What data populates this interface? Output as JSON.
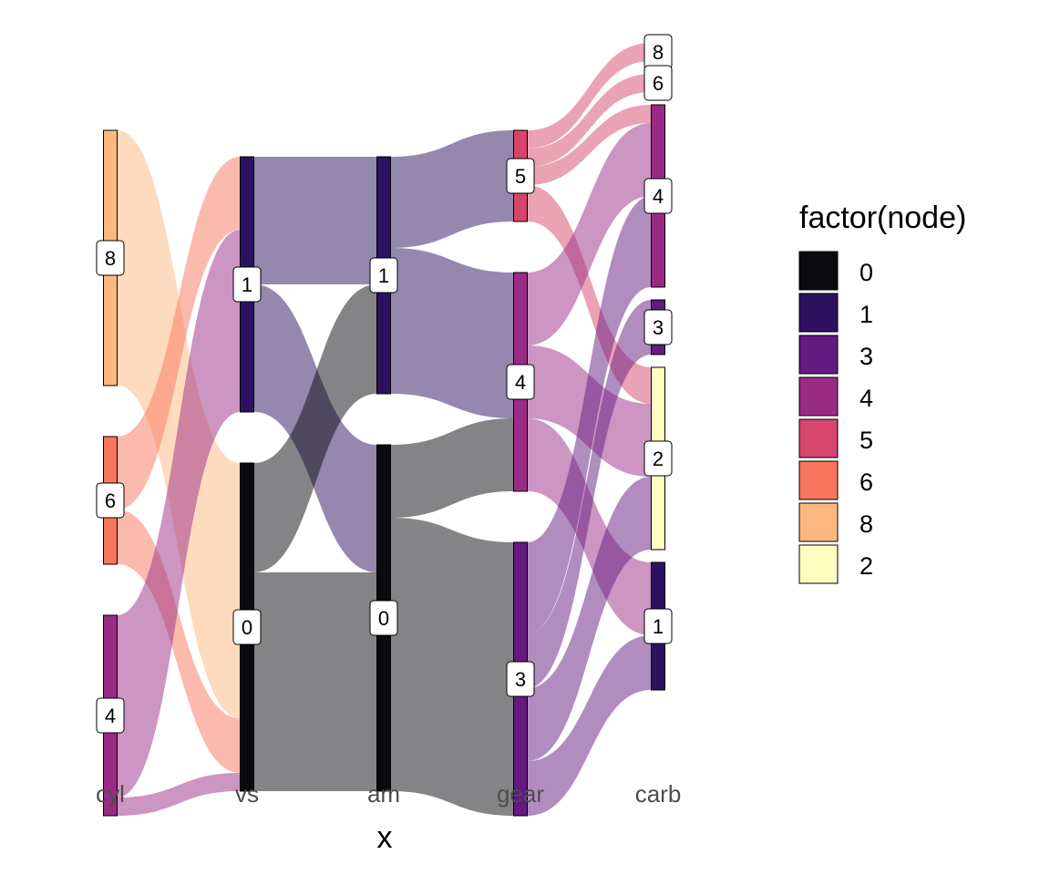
{
  "chart_data": {
    "type": "sankey",
    "title": "",
    "xlabel": "x",
    "ylabel": "",
    "axes": [
      "cyl",
      "vs",
      "am",
      "gear",
      "carb"
    ],
    "nodes": [
      {
        "axis": "cyl",
        "label": "8",
        "count": 14
      },
      {
        "axis": "cyl",
        "label": "6",
        "count": 7
      },
      {
        "axis": "cyl",
        "label": "4",
        "count": 11
      },
      {
        "axis": "vs",
        "label": "1",
        "count": 14
      },
      {
        "axis": "vs",
        "label": "0",
        "count": 18
      },
      {
        "axis": "am",
        "label": "1",
        "count": 13
      },
      {
        "axis": "am",
        "label": "0",
        "count": 19
      },
      {
        "axis": "gear",
        "label": "5",
        "count": 5
      },
      {
        "axis": "gear",
        "label": "4",
        "count": 12
      },
      {
        "axis": "gear",
        "label": "3",
        "count": 15
      },
      {
        "axis": "carb",
        "label": "8",
        "count": 1
      },
      {
        "axis": "carb",
        "label": "6",
        "count": 1
      },
      {
        "axis": "carb",
        "label": "4",
        "count": 10
      },
      {
        "axis": "carb",
        "label": "3",
        "count": 3
      },
      {
        "axis": "carb",
        "label": "2",
        "count": 10
      },
      {
        "axis": "carb",
        "label": "1",
        "count": 7
      }
    ],
    "flows": [
      {
        "from": "cyl:8",
        "to": "vs:0",
        "value": 14
      },
      {
        "from": "cyl:6",
        "to": "vs:1",
        "value": 4
      },
      {
        "from": "cyl:6",
        "to": "vs:0",
        "value": 3
      },
      {
        "from": "cyl:4",
        "to": "vs:1",
        "value": 10
      },
      {
        "from": "cyl:4",
        "to": "vs:0",
        "value": 1
      },
      {
        "from": "vs:1",
        "to": "am:1",
        "value": 7
      },
      {
        "from": "vs:1",
        "to": "am:0",
        "value": 7
      },
      {
        "from": "vs:0",
        "to": "am:1",
        "value": 6
      },
      {
        "from": "vs:0",
        "to": "am:0",
        "value": 12
      },
      {
        "from": "am:1",
        "to": "gear:5",
        "value": 5
      },
      {
        "from": "am:1",
        "to": "gear:4",
        "value": 8
      },
      {
        "from": "am:0",
        "to": "gear:4",
        "value": 4
      },
      {
        "from": "am:0",
        "to": "gear:3",
        "value": 15
      },
      {
        "from": "gear:5",
        "to": "carb:8",
        "value": 1
      },
      {
        "from": "gear:5",
        "to": "carb:6",
        "value": 1
      },
      {
        "from": "gear:5",
        "to": "carb:4",
        "value": 1
      },
      {
        "from": "gear:5",
        "to": "carb:2",
        "value": 2
      },
      {
        "from": "gear:4",
        "to": "carb:4",
        "value": 4
      },
      {
        "from": "gear:4",
        "to": "carb:2",
        "value": 4
      },
      {
        "from": "gear:4",
        "to": "carb:1",
        "value": 4
      },
      {
        "from": "gear:3",
        "to": "carb:4",
        "value": 5
      },
      {
        "from": "gear:3",
        "to": "carb:3",
        "value": 3
      },
      {
        "from": "gear:3",
        "to": "carb:2",
        "value": 4
      },
      {
        "from": "gear:3",
        "to": "carb:1",
        "value": 3
      }
    ],
    "legend": {
      "title": "factor(node)",
      "position": "right",
      "entries": [
        {
          "label": "0",
          "color": "#0a0a0f"
        },
        {
          "label": "1",
          "color": "#2c1160"
        },
        {
          "label": "3",
          "color": "#641a80"
        },
        {
          "label": "4",
          "color": "#9a2b85"
        },
        {
          "label": "5",
          "color": "#d6456c"
        },
        {
          "label": "6",
          "color": "#f8765c"
        },
        {
          "label": "8",
          "color": "#feb77e"
        },
        {
          "label": "2",
          "color": "#fcfdbf"
        }
      ]
    },
    "grid": false
  }
}
